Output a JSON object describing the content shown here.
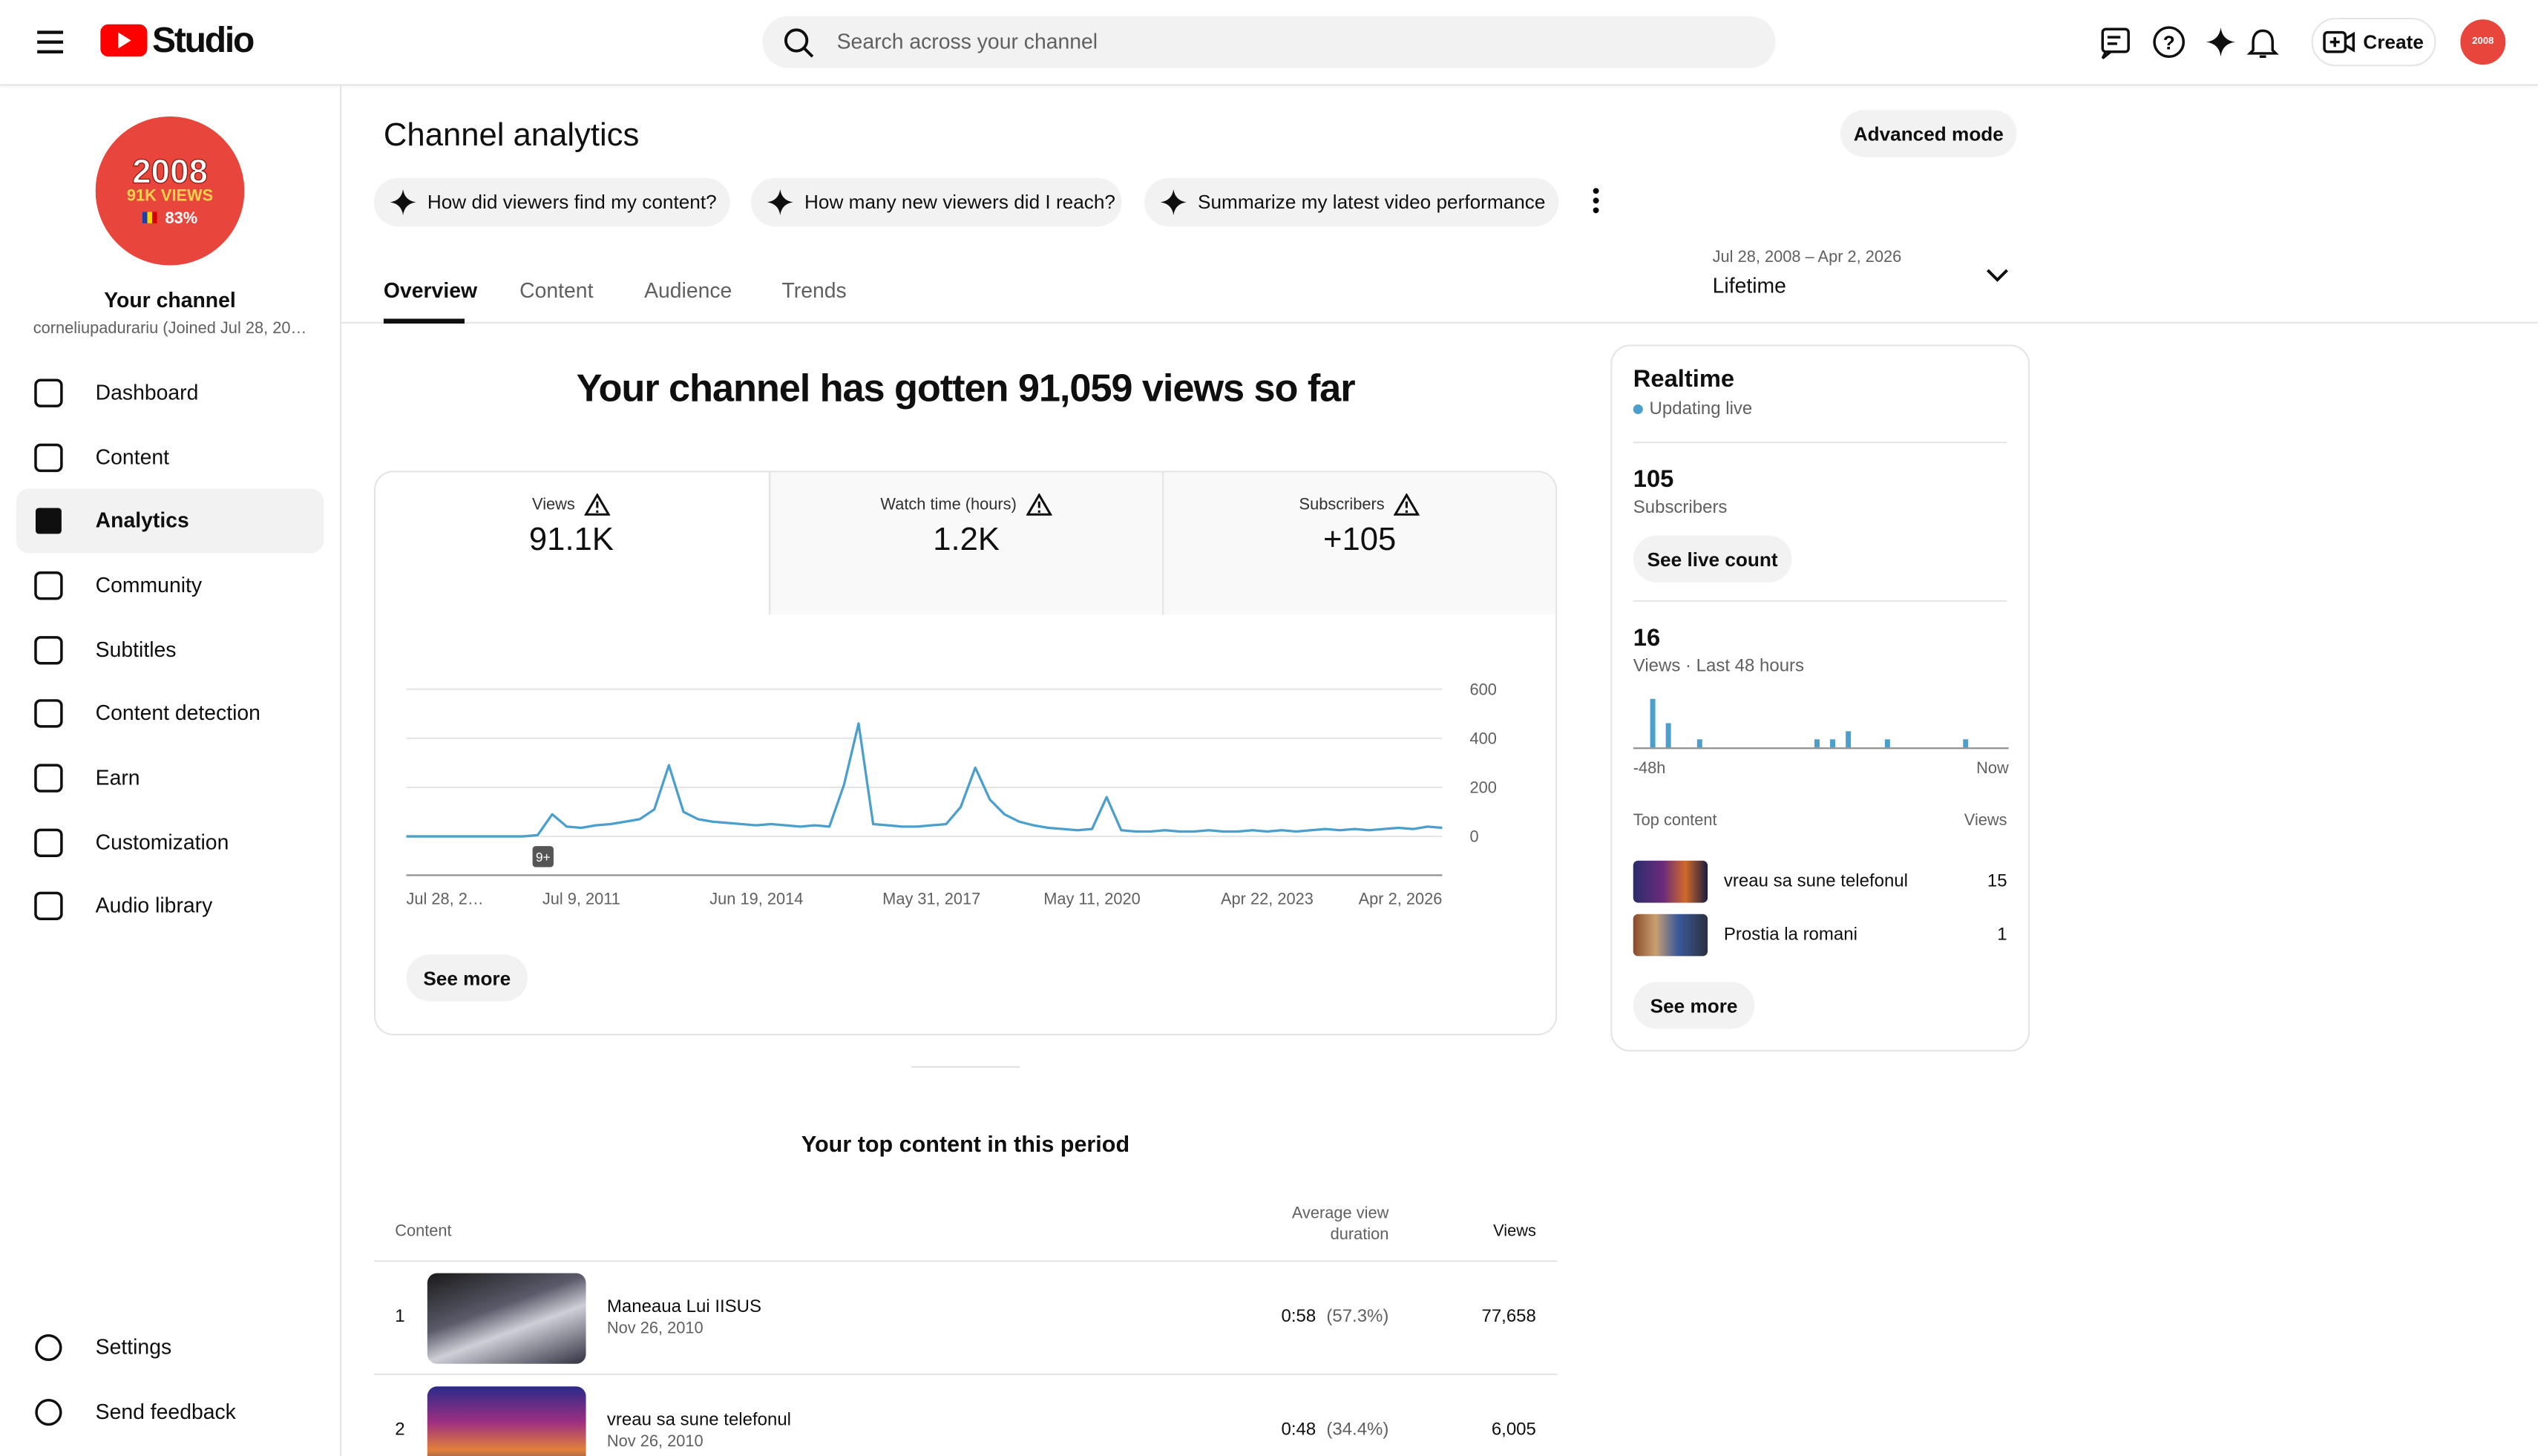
{
  "header": {
    "logo": "Studio",
    "search": "Search across your channel",
    "create": "Create"
  },
  "sidebar": {
    "avatar": {
      "year": "2008",
      "views": "91K VIEWS",
      "share": "83%"
    },
    "channel": "Your channel",
    "handle": "corneliupadurariu (Joined Jul 28, 20…",
    "nav": [
      "Dashboard",
      "Content",
      "Analytics",
      "Community",
      "Subtitles",
      "Content detection",
      "Earn",
      "Customization",
      "Audio library"
    ],
    "footer_nav": [
      "Settings",
      "Send feedback"
    ]
  },
  "analytics": {
    "title": "Channel analytics",
    "advanced_mode": "Advanced mode",
    "prompts": [
      "How did viewers find my content?",
      "How many new viewers did I reach?",
      "Summarize my latest video performance"
    ],
    "tabs": [
      "Overview",
      "Content",
      "Audience",
      "Trends"
    ],
    "date_range": "Jul 28, 2008 – Apr 2, 2026",
    "period": "Lifetime",
    "headline": "Your channel has gotten 91,059 views so far",
    "metrics": [
      {
        "label": "Views",
        "value": "91.1K"
      },
      {
        "label": "Watch time (hours)",
        "value": "1.2K"
      },
      {
        "label": "Subscribers",
        "value": "+105"
      }
    ],
    "chart_badge": "9+",
    "see_more": "See more"
  },
  "chart_data": [
    {
      "type": "line",
      "color": "#4a9fcc",
      "grid": true,
      "values": [
        0,
        0,
        0,
        0,
        0,
        0,
        0,
        0,
        0,
        5,
        90,
        40,
        35,
        45,
        50,
        60,
        70,
        110,
        290,
        100,
        70,
        60,
        55,
        50,
        45,
        50,
        45,
        40,
        45,
        40,
        210,
        460,
        50,
        45,
        40,
        40,
        45,
        50,
        120,
        280,
        150,
        90,
        60,
        45,
        35,
        30,
        25,
        30,
        160,
        25,
        20,
        20,
        25,
        20,
        20,
        25,
        20,
        20,
        25,
        20,
        25,
        20,
        25,
        30,
        25,
        30,
        25,
        30,
        35,
        30,
        40,
        35
      ],
      "ylim": [
        0,
        600
      ],
      "yticks": [
        0,
        200,
        400,
        600
      ],
      "xticks": [
        {
          "value": 0,
          "label": "Jul 28, 2…"
        },
        {
          "value": 12,
          "label": "Jul 9, 2011"
        },
        {
          "value": 24,
          "label": "Jun 19, 2014"
        },
        {
          "value": 36,
          "label": "May 31, 2017"
        },
        {
          "value": 47,
          "label": "May 11, 2020"
        },
        {
          "value": 59,
          "label": "Apr 22, 2023"
        },
        {
          "value": 71,
          "label": "Apr 2, 2026"
        }
      ]
    },
    {
      "type": "bar",
      "color": "#4a9fcc",
      "values": [
        0,
        0,
        6,
        0,
        3,
        0,
        0,
        0,
        1,
        0,
        0,
        0,
        0,
        0,
        0,
        0,
        0,
        0,
        0,
        0,
        0,
        0,
        0,
        1,
        0,
        1,
        0,
        2,
        0,
        0,
        0,
        0,
        1,
        0,
        0,
        0,
        0,
        0,
        0,
        0,
        0,
        0,
        1,
        0,
        0,
        0,
        0,
        0
      ]
    }
  ],
  "realtime": {
    "title": "Realtime",
    "status": "Updating live",
    "subscribers": {
      "value": "105",
      "label": "Subscribers"
    },
    "see_live": "See live count",
    "views": {
      "value": "16",
      "label": "Views · Last 48 hours"
    },
    "start": "-48h",
    "end": "Now",
    "top_content": "Top content",
    "views_label": "Views",
    "items": [
      {
        "title": "vreau sa sune telefonul",
        "views": "15"
      },
      {
        "title": "Prostia la romani",
        "views": "1"
      }
    ],
    "see_more": "See more"
  },
  "top_content": {
    "title": "Your top content in this period",
    "columns": [
      "Content",
      "Average view duration",
      "Views"
    ],
    "rows": [
      {
        "rank": "1",
        "title": "Maneaua Lui IISUS",
        "date": "Nov 26, 2010",
        "duration": "0:58",
        "percent": "(57.3%)",
        "views": "77,658"
      },
      {
        "rank": "2",
        "title": "vreau sa sune telefonul",
        "date": "Nov 26, 2010",
        "duration": "0:48",
        "percent": "(34.4%)",
        "views": "6,005"
      }
    ]
  }
}
